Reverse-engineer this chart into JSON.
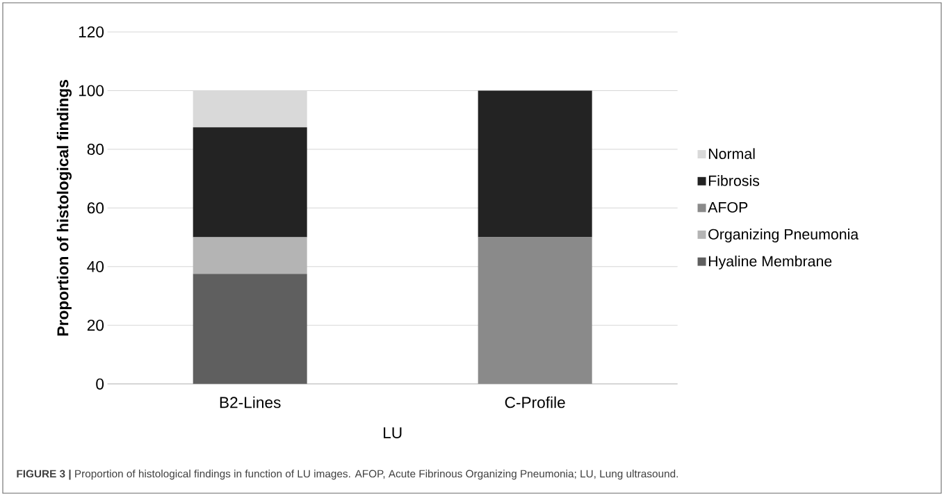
{
  "chart_data": {
    "type": "bar",
    "stacked": true,
    "xlabel": "LU",
    "ylabel": "Proportion of histological findings",
    "categories": [
      "B2-Lines",
      "C-Profile"
    ],
    "series": [
      {
        "name": "Hyaline Membrane",
        "color": "#5f5f5f",
        "values": [
          37.5,
          0
        ]
      },
      {
        "name": "Organizing Pneumonia",
        "color": "#b4b4b4",
        "values": [
          12.5,
          0
        ]
      },
      {
        "name": "AFOP",
        "color": "#8a8a8a",
        "values": [
          0,
          50
        ]
      },
      {
        "name": "Fibrosis",
        "color": "#232323",
        "values": [
          37.5,
          50
        ]
      },
      {
        "name": "Normal",
        "color": "#d9d9d9",
        "values": [
          12.5,
          0
        ]
      }
    ],
    "ylim": [
      0,
      120
    ],
    "yticks": [
      0,
      20,
      40,
      60,
      80,
      100,
      120
    ],
    "grid": "y",
    "legend": "right",
    "annotations": [
      "**FIGURE 3 |** Proportion of histological findings in function of LU images. AFOP, Acute Fibrinous Organizing Pneumonia; LU, Lung ultrasound."
    ]
  }
}
